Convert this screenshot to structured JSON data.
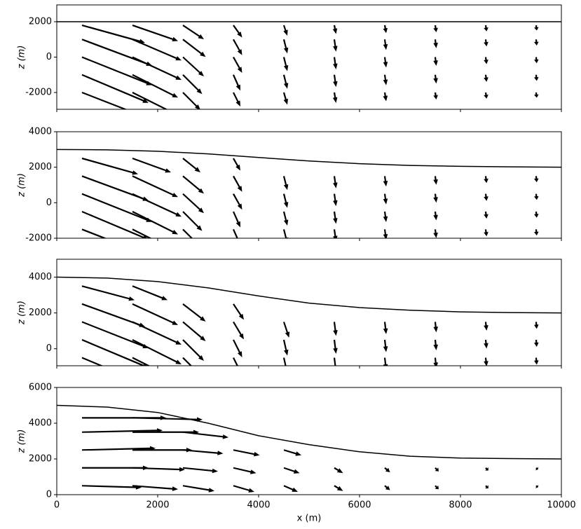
{
  "chart_data": [
    {
      "type": "quiver",
      "ylabel": "z (m)",
      "xlim": [
        0,
        10000
      ],
      "ylim": [
        -2950,
        2950
      ],
      "yticks": [
        -2000,
        0,
        2000
      ],
      "surface_x": [
        0,
        1000,
        2000,
        3000,
        4000,
        5000,
        6000,
        7000,
        8000,
        9000,
        10000
      ],
      "surface_z": [
        2000,
        2000,
        2000,
        2000,
        2000,
        2000,
        2000,
        2000,
        2000,
        2000,
        2000
      ],
      "x": [
        500,
        1500,
        2500,
        3500,
        4500,
        5500,
        6500,
        7500,
        8500,
        9500
      ],
      "z": [
        -2000,
        -1000,
        0,
        1000,
        1800
      ],
      "u": [
        [
          3.6,
          2.4,
          1.0,
          0.4,
          0.2,
          0.1,
          0.08,
          0.06,
          0.05,
          0.03
        ],
        [
          3.8,
          2.6,
          1.1,
          0.4,
          0.2,
          0.1,
          0.08,
          0.06,
          0.05,
          0.03
        ],
        [
          4.0,
          2.8,
          1.2,
          0.5,
          0.2,
          0.1,
          0.08,
          0.06,
          0.05,
          0.03
        ],
        [
          4.0,
          2.8,
          1.3,
          0.5,
          0.2,
          0.1,
          0.08,
          0.06,
          0.05,
          0.03
        ],
        [
          3.6,
          2.6,
          1.2,
          0.5,
          0.2,
          0.1,
          0.08,
          0.06,
          0.05,
          0.03
        ]
      ],
      "w": [
        [
          -1.4,
          -1.2,
          -1.0,
          -0.8,
          -0.7,
          -0.6,
          -0.5,
          -0.4,
          -0.35,
          -0.3
        ],
        [
          -1.6,
          -1.3,
          -1.1,
          -0.9,
          -0.8,
          -0.7,
          -0.6,
          -0.5,
          -0.4,
          -0.35
        ],
        [
          -1.6,
          -1.3,
          -1.1,
          -0.9,
          -0.8,
          -0.7,
          -0.6,
          -0.5,
          -0.4,
          -0.35
        ],
        [
          -1.5,
          -1.2,
          -1.0,
          -0.9,
          -0.8,
          -0.7,
          -0.6,
          -0.5,
          -0.4,
          -0.35
        ],
        [
          -1.0,
          -0.9,
          -0.8,
          -0.7,
          -0.6,
          -0.5,
          -0.45,
          -0.4,
          -0.35,
          -0.3
        ]
      ]
    },
    {
      "type": "quiver",
      "ylabel": "z (m)",
      "xlim": [
        0,
        10000
      ],
      "ylim": [
        -2000,
        4000
      ],
      "yticks": [
        -2000,
        0,
        2000,
        4000
      ],
      "surface_x": [
        0,
        1000,
        2000,
        3000,
        4000,
        5000,
        6000,
        7000,
        8000,
        9000,
        10000
      ],
      "surface_z": [
        3000,
        2980,
        2900,
        2750,
        2550,
        2350,
        2200,
        2100,
        2050,
        2020,
        2000
      ],
      "x": [
        500,
        1500,
        2500,
        3500,
        4500,
        5500,
        6500,
        7500,
        8500,
        9500
      ],
      "z": [
        -1500,
        -500,
        500,
        1500,
        2500
      ],
      "u": [
        [
          3.6,
          2.4,
          1.0,
          0.4,
          0.2,
          0.1,
          0.08,
          0.06,
          0.05,
          0.03
        ],
        [
          3.8,
          2.6,
          1.1,
          0.4,
          0.2,
          0.1,
          0.08,
          0.06,
          0.05,
          0.03
        ],
        [
          4.0,
          2.8,
          1.2,
          0.5,
          0.2,
          0.1,
          0.08,
          0.06,
          0.05,
          0.03
        ],
        [
          3.8,
          2.6,
          1.2,
          0.5,
          0.2,
          0.1,
          0.08,
          0.06,
          0.05,
          0.03
        ],
        [
          3.2,
          2.2,
          1.0,
          0.4,
          null,
          null,
          null,
          null,
          null,
          null
        ]
      ],
      "w": [
        [
          -1.4,
          -1.2,
          -1.0,
          -0.9,
          -0.8,
          -0.7,
          -0.6,
          -0.5,
          -0.4,
          -0.35
        ],
        [
          -1.6,
          -1.3,
          -1.1,
          -0.9,
          -0.8,
          -0.7,
          -0.6,
          -0.5,
          -0.4,
          -0.35
        ],
        [
          -1.6,
          -1.3,
          -1.1,
          -0.9,
          -0.8,
          -0.7,
          -0.6,
          -0.5,
          -0.4,
          -0.35
        ],
        [
          -1.4,
          -1.2,
          -1.0,
          -0.9,
          -0.8,
          -0.7,
          -0.6,
          -0.5,
          -0.4,
          -0.35
        ],
        [
          -0.9,
          -0.8,
          -0.8,
          -0.7,
          null,
          null,
          null,
          null,
          null,
          null
        ]
      ]
    },
    {
      "type": "quiver",
      "ylabel": "z (m)",
      "xlim": [
        0,
        10000
      ],
      "ylim": [
        -950,
        5000
      ],
      "yticks": [
        0,
        2000,
        4000
      ],
      "surface_x": [
        0,
        1000,
        2000,
        3000,
        4000,
        5000,
        6000,
        7000,
        8000,
        9000,
        10000
      ],
      "surface_z": [
        4000,
        3950,
        3750,
        3400,
        2950,
        2550,
        2300,
        2150,
        2060,
        2020,
        2000
      ],
      "x": [
        500,
        1500,
        2500,
        3500,
        4500,
        5500,
        6500,
        7500,
        8500,
        9500
      ],
      "z": [
        -500,
        500,
        1500,
        2500,
        3500
      ],
      "u": [
        [
          3.6,
          2.6,
          1.1,
          0.5,
          0.2,
          0.1,
          0.08,
          0.06,
          0.05,
          0.03
        ],
        [
          3.8,
          2.8,
          1.2,
          0.5,
          0.2,
          0.1,
          0.08,
          0.06,
          0.05,
          0.03
        ],
        [
          3.8,
          2.8,
          1.3,
          0.6,
          0.3,
          0.1,
          0.08,
          0.06,
          0.05,
          0.03
        ],
        [
          3.6,
          2.6,
          1.3,
          0.6,
          null,
          null,
          null,
          null,
          null,
          null
        ],
        [
          3.0,
          2.0,
          null,
          null,
          null,
          null,
          null,
          null,
          null,
          null
        ]
      ],
      "w": [
        [
          -1.5,
          -1.3,
          -1.1,
          -1.0,
          -0.9,
          -0.8,
          -0.7,
          -0.6,
          -0.5,
          -0.4
        ],
        [
          -1.6,
          -1.4,
          -1.2,
          -1.0,
          -0.9,
          -0.8,
          -0.7,
          -0.6,
          -0.5,
          -0.4
        ],
        [
          -1.5,
          -1.3,
          -1.1,
          -1.0,
          -0.9,
          -0.8,
          -0.7,
          -0.6,
          -0.5,
          -0.4
        ],
        [
          -1.3,
          -1.2,
          -1.0,
          -0.9,
          null,
          null,
          null,
          null,
          null,
          null
        ],
        [
          -0.8,
          -0.8,
          null,
          null,
          null,
          null,
          null,
          null,
          null,
          null
        ]
      ]
    },
    {
      "type": "quiver",
      "ylabel": "z (m)",
      "xlabel": "x (m)",
      "xlim": [
        0,
        10000
      ],
      "ylim": [
        0,
        6000
      ],
      "yticks": [
        0,
        2000,
        4000,
        6000
      ],
      "xticks": [
        0,
        2000,
        4000,
        6000,
        8000,
        10000
      ],
      "surface_x": [
        0,
        1000,
        2000,
        3000,
        4000,
        5000,
        6000,
        7000,
        8000,
        9000,
        10000
      ],
      "surface_z": [
        5000,
        4900,
        4600,
        4000,
        3300,
        2800,
        2400,
        2150,
        2050,
        2020,
        2000
      ],
      "x": [
        500,
        1500,
        2500,
        3500,
        4500,
        5500,
        6500,
        7500,
        8500,
        9500
      ],
      "z": [
        500,
        1500,
        2500,
        3500,
        4300
      ],
      "u": [
        [
          3.4,
          2.6,
          1.8,
          1.2,
          0.8,
          0.5,
          0.3,
          0.2,
          0.15,
          0.1
        ],
        [
          3.8,
          3.0,
          2.0,
          1.3,
          0.9,
          0.5,
          0.3,
          0.2,
          0.15,
          0.1
        ],
        [
          4.2,
          3.4,
          2.3,
          1.5,
          1.0,
          null,
          null,
          null,
          null,
          null
        ],
        [
          4.6,
          3.8,
          2.6,
          null,
          null,
          null,
          null,
          null,
          null,
          null
        ],
        [
          4.8,
          4.0,
          null,
          null,
          null,
          null,
          null,
          null,
          null,
          null
        ]
      ],
      "w": [
        [
          -0.1,
          -0.2,
          -0.3,
          -0.35,
          -0.35,
          -0.3,
          -0.25,
          -0.2,
          -0.15,
          -0.1
        ],
        [
          0.0,
          -0.1,
          -0.2,
          -0.3,
          -0.3,
          -0.3,
          -0.25,
          -0.2,
          -0.15,
          -0.1
        ],
        [
          0.1,
          0.0,
          -0.2,
          -0.3,
          -0.3,
          null,
          null,
          null,
          null,
          null
        ],
        [
          0.1,
          0.0,
          -0.3,
          null,
          null,
          null,
          null,
          null,
          null,
          null
        ],
        [
          0.0,
          -0.1,
          null,
          null,
          null,
          null,
          null,
          null,
          null,
          null
        ]
      ]
    }
  ]
}
